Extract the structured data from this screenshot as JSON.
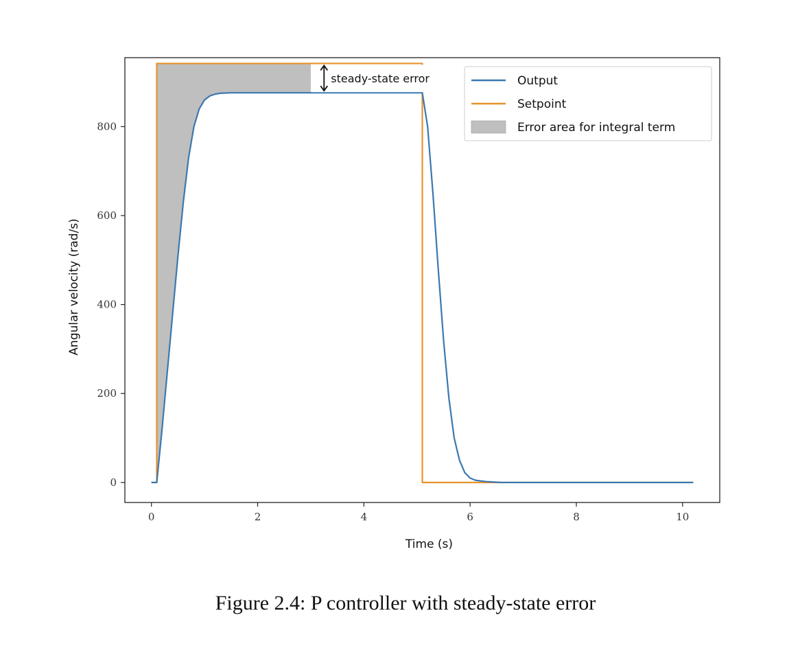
{
  "caption": "Figure 2.4: P controller with steady-state error",
  "colors": {
    "output": "#3a78b0",
    "setpoint": "#e8922b",
    "error_area": "#bfbfbf"
  },
  "chart_data": {
    "type": "line",
    "xlabel": "Time (s)",
    "ylabel": "Angular velocity (rad/s)",
    "xlim": [
      -0.5,
      10.7
    ],
    "ylim": [
      -45,
      955
    ],
    "xticks": [
      0,
      2,
      4,
      6,
      8,
      10
    ],
    "yticks": [
      0,
      200,
      400,
      600,
      800
    ],
    "grid": false,
    "legend_position": "top-right",
    "series": [
      {
        "name": "Output",
        "x": [
          0.0,
          0.1,
          0.2,
          0.3,
          0.4,
          0.5,
          0.6,
          0.7,
          0.8,
          0.9,
          1.0,
          1.1,
          1.2,
          1.3,
          1.5,
          1.8,
          2.2,
          3.0,
          4.0,
          5.0,
          5.1,
          5.2,
          5.3,
          5.4,
          5.5,
          5.6,
          5.7,
          5.8,
          5.9,
          6.0,
          6.1,
          6.3,
          6.6,
          7.0,
          8.0,
          9.0,
          10.2
        ],
        "y": [
          0,
          0,
          120,
          250,
          380,
          510,
          630,
          730,
          800,
          840,
          860,
          869,
          873,
          875,
          876,
          876,
          876,
          876,
          876,
          876,
          876,
          800,
          650,
          480,
          320,
          190,
          100,
          50,
          22,
          10,
          5,
          2,
          0,
          0,
          0,
          0,
          0
        ]
      },
      {
        "name": "Setpoint",
        "x": [
          0.0,
          0.1,
          0.1,
          5.1,
          5.1,
          10.2
        ],
        "y": [
          0,
          0,
          942,
          942,
          0,
          0
        ]
      }
    ],
    "fill": {
      "name": "Error area for integral term",
      "between": [
        "Setpoint",
        "Output"
      ],
      "x_range": [
        0.1,
        3.0
      ]
    },
    "annotations": [
      {
        "text": "steady-state error",
        "x": 3.25,
        "y_from": 876,
        "y_to": 942
      }
    ]
  }
}
